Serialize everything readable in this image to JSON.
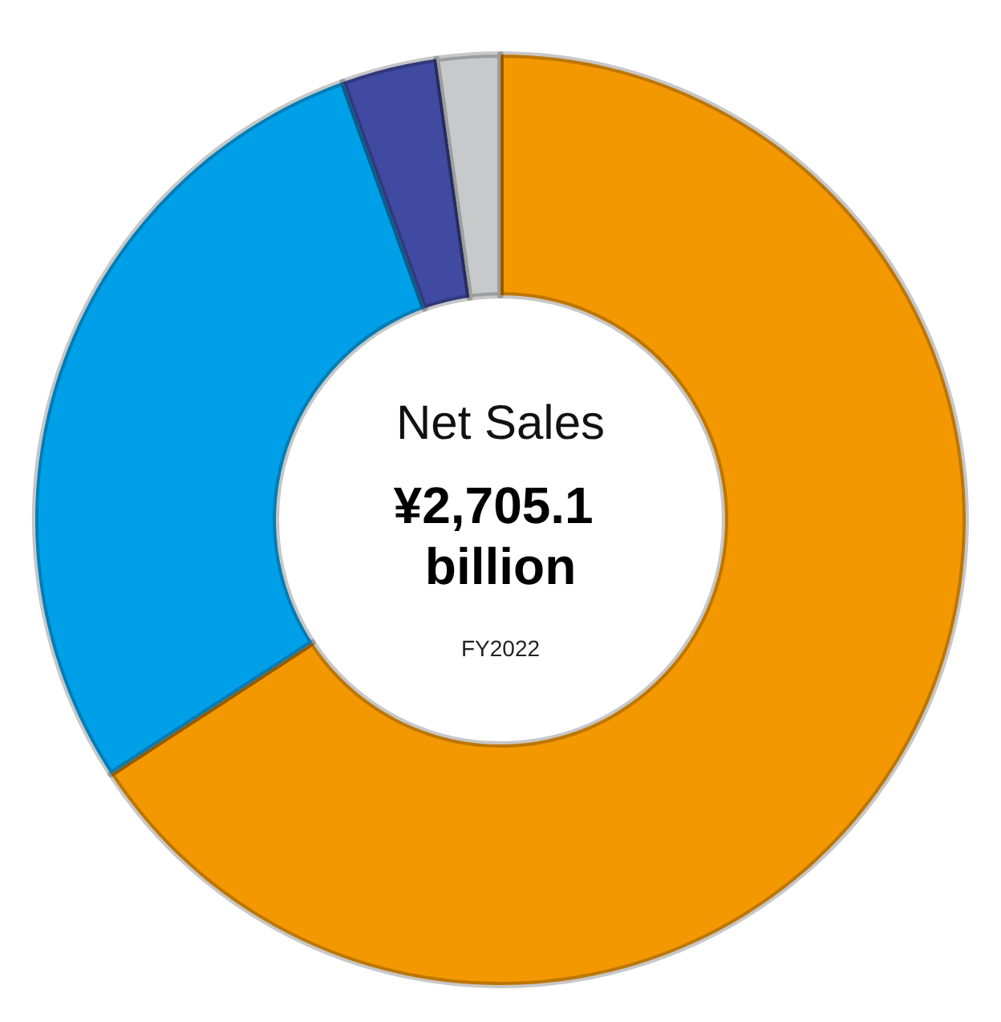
{
  "chart_data": {
    "type": "donut",
    "title": "Net Sales",
    "subtitle": "¥2,705.1 billion",
    "annotations": [
      "FY2022"
    ],
    "categories": [
      null,
      null,
      null,
      null
    ],
    "values": [
      65.8,
      28.7,
      3.3,
      2.2
    ],
    "colors": [
      "#f39800",
      "#00a0e9",
      "#3f4aa0",
      "#c8c9ca"
    ]
  }
}
